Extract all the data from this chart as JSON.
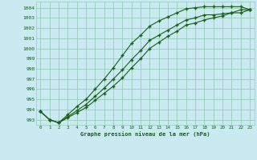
{
  "title": "Graphe pression niveau de la mer (hPa)",
  "x": [
    0,
    1,
    2,
    3,
    4,
    5,
    6,
    7,
    8,
    9,
    10,
    11,
    12,
    13,
    14,
    15,
    16,
    17,
    18,
    19,
    20,
    21,
    22,
    23
  ],
  "ylim": [
    992.5,
    1004.6
  ],
  "xlim": [
    -0.5,
    23.5
  ],
  "yticks": [
    993,
    994,
    995,
    996,
    997,
    998,
    999,
    1000,
    1001,
    1002,
    1003,
    1004
  ],
  "background_color": "#c8eaf0",
  "grid_color": "#99ccbb",
  "line_color": "#1a5e1a",
  "line1": [
    993.8,
    993.0,
    992.7,
    993.3,
    993.9,
    994.5,
    995.3,
    996.1,
    997.0,
    997.9,
    998.9,
    999.8,
    1000.8,
    1001.3,
    1001.8,
    1002.3,
    1002.8,
    1003.0,
    1003.3,
    1003.3,
    1003.4,
    1003.5,
    1003.5,
    1003.8
  ],
  "line2": [
    993.8,
    993.0,
    992.7,
    993.2,
    993.7,
    994.2,
    994.9,
    995.6,
    996.3,
    997.1,
    998.1,
    999.0,
    1000.0,
    1000.6,
    1001.2,
    1001.7,
    1002.3,
    1002.5,
    1002.8,
    1003.0,
    1003.2,
    1003.5,
    1003.8,
    1003.8
  ],
  "line3": [
    993.8,
    993.0,
    992.7,
    993.5,
    994.3,
    995.0,
    996.0,
    997.0,
    998.1,
    999.3,
    1000.5,
    1001.3,
    1002.2,
    1002.7,
    1003.1,
    1003.5,
    1003.9,
    1004.0,
    1004.1,
    1004.1,
    1004.1,
    1004.1,
    1004.1,
    1003.8
  ]
}
